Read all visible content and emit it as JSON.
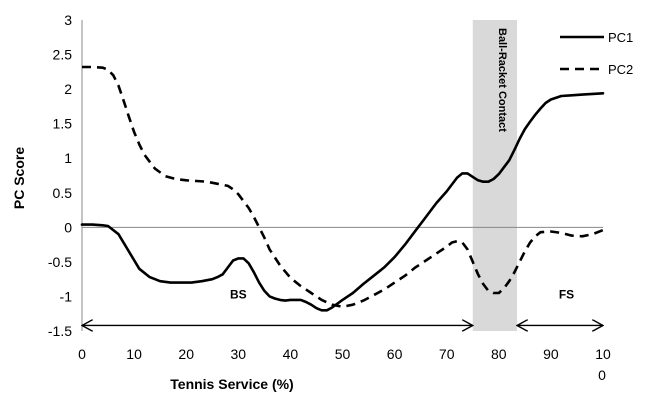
{
  "chart_data": {
    "type": "line",
    "title": "",
    "xlabel": "Tennis Service (%)",
    "ylabel": "PC Score",
    "xlim": [
      0,
      100
    ],
    "ylim": [
      -1.5,
      3
    ],
    "x_ticks": [
      "0",
      "10",
      "20",
      "30",
      "40",
      "50",
      "60",
      "70",
      "80",
      "90",
      "10"
    ],
    "x_tick_extra": "0",
    "y_ticks": [
      "3",
      "2.5",
      "2",
      "1.5",
      "1",
      "0.5",
      "0",
      "-0.5",
      "-1",
      "-1.5"
    ],
    "y_tick_values": [
      3,
      2.5,
      2,
      1.5,
      1,
      0.5,
      0,
      -0.5,
      -1,
      -1.5
    ],
    "grid": false,
    "zero_line": true,
    "legend": "top-right",
    "shaded_region": {
      "label": "Ball-Racket Contact",
      "x_start": 75,
      "x_end": 83.5,
      "color": "#d9d9d9"
    },
    "annotations": [
      {
        "text": "BS",
        "x_start": 0,
        "x_end": 75,
        "y": -1.42,
        "label_x": 30,
        "label_y": -1.03
      },
      {
        "text": "FS",
        "x_start": 83.5,
        "x_end": 100,
        "y": -1.42,
        "label_x": 93,
        "label_y": -1.03
      }
    ],
    "series": [
      {
        "name": "PC1",
        "style": "solid",
        "color": "#000000",
        "x": [
          0,
          2,
          4,
          5,
          7,
          9,
          11,
          13,
          15,
          17,
          19,
          21,
          23,
          25,
          26,
          27,
          28,
          29,
          30,
          31,
          32,
          33,
          34,
          35,
          36,
          37,
          38,
          39,
          40,
          42,
          43,
          44,
          45,
          46,
          47,
          48,
          50,
          52,
          54,
          56,
          58,
          60,
          62,
          64,
          66,
          68,
          70,
          72,
          73,
          74,
          75,
          76,
          77,
          78,
          79,
          80,
          81,
          82,
          83,
          84,
          85,
          86,
          87,
          88,
          89,
          90,
          92,
          94,
          96,
          98,
          100
        ],
        "y": [
          0.04,
          0.04,
          0.03,
          0.02,
          -0.1,
          -0.35,
          -0.6,
          -0.72,
          -0.78,
          -0.8,
          -0.8,
          -0.8,
          -0.78,
          -0.75,
          -0.72,
          -0.68,
          -0.58,
          -0.48,
          -0.45,
          -0.45,
          -0.52,
          -0.65,
          -0.8,
          -0.92,
          -1.0,
          -1.03,
          -1.05,
          -1.06,
          -1.05,
          -1.05,
          -1.08,
          -1.12,
          -1.17,
          -1.2,
          -1.2,
          -1.16,
          -1.05,
          -0.95,
          -0.82,
          -0.7,
          -0.58,
          -0.43,
          -0.25,
          -0.05,
          0.15,
          0.35,
          0.52,
          0.72,
          0.78,
          0.78,
          0.73,
          0.68,
          0.66,
          0.66,
          0.7,
          0.77,
          0.87,
          0.97,
          1.12,
          1.28,
          1.42,
          1.53,
          1.63,
          1.72,
          1.8,
          1.85,
          1.9,
          1.91,
          1.92,
          1.93,
          1.94
        ]
      },
      {
        "name": "PC2",
        "style": "dashed",
        "color": "#000000",
        "x": [
          0,
          2,
          4,
          5,
          6,
          7,
          8,
          9,
          10,
          11,
          12,
          14,
          16,
          18,
          20,
          22,
          24,
          26,
          28,
          29,
          30,
          31,
          32,
          33,
          34,
          35,
          36,
          38,
          40,
          42,
          44,
          46,
          48,
          50,
          52,
          54,
          56,
          58,
          60,
          62,
          64,
          66,
          68,
          70,
          71,
          72,
          73,
          74,
          75,
          76,
          77,
          78,
          79,
          80,
          81,
          82,
          83,
          84,
          85,
          86,
          87,
          88,
          90,
          92,
          94,
          96,
          98,
          100
        ],
        "y": [
          2.32,
          2.32,
          2.31,
          2.28,
          2.2,
          2.05,
          1.83,
          1.6,
          1.38,
          1.2,
          1.05,
          0.85,
          0.74,
          0.7,
          0.68,
          0.67,
          0.66,
          0.63,
          0.6,
          0.55,
          0.48,
          0.38,
          0.28,
          0.15,
          0.0,
          -0.15,
          -0.32,
          -0.55,
          -0.73,
          -0.85,
          -0.95,
          -1.05,
          -1.12,
          -1.15,
          -1.12,
          -1.06,
          -0.98,
          -0.9,
          -0.8,
          -0.7,
          -0.58,
          -0.48,
          -0.38,
          -0.28,
          -0.22,
          -0.2,
          -0.22,
          -0.32,
          -0.5,
          -0.68,
          -0.82,
          -0.92,
          -0.95,
          -0.95,
          -0.88,
          -0.78,
          -0.65,
          -0.5,
          -0.35,
          -0.22,
          -0.13,
          -0.07,
          -0.06,
          -0.08,
          -0.12,
          -0.13,
          -0.1,
          -0.04
        ]
      }
    ]
  }
}
